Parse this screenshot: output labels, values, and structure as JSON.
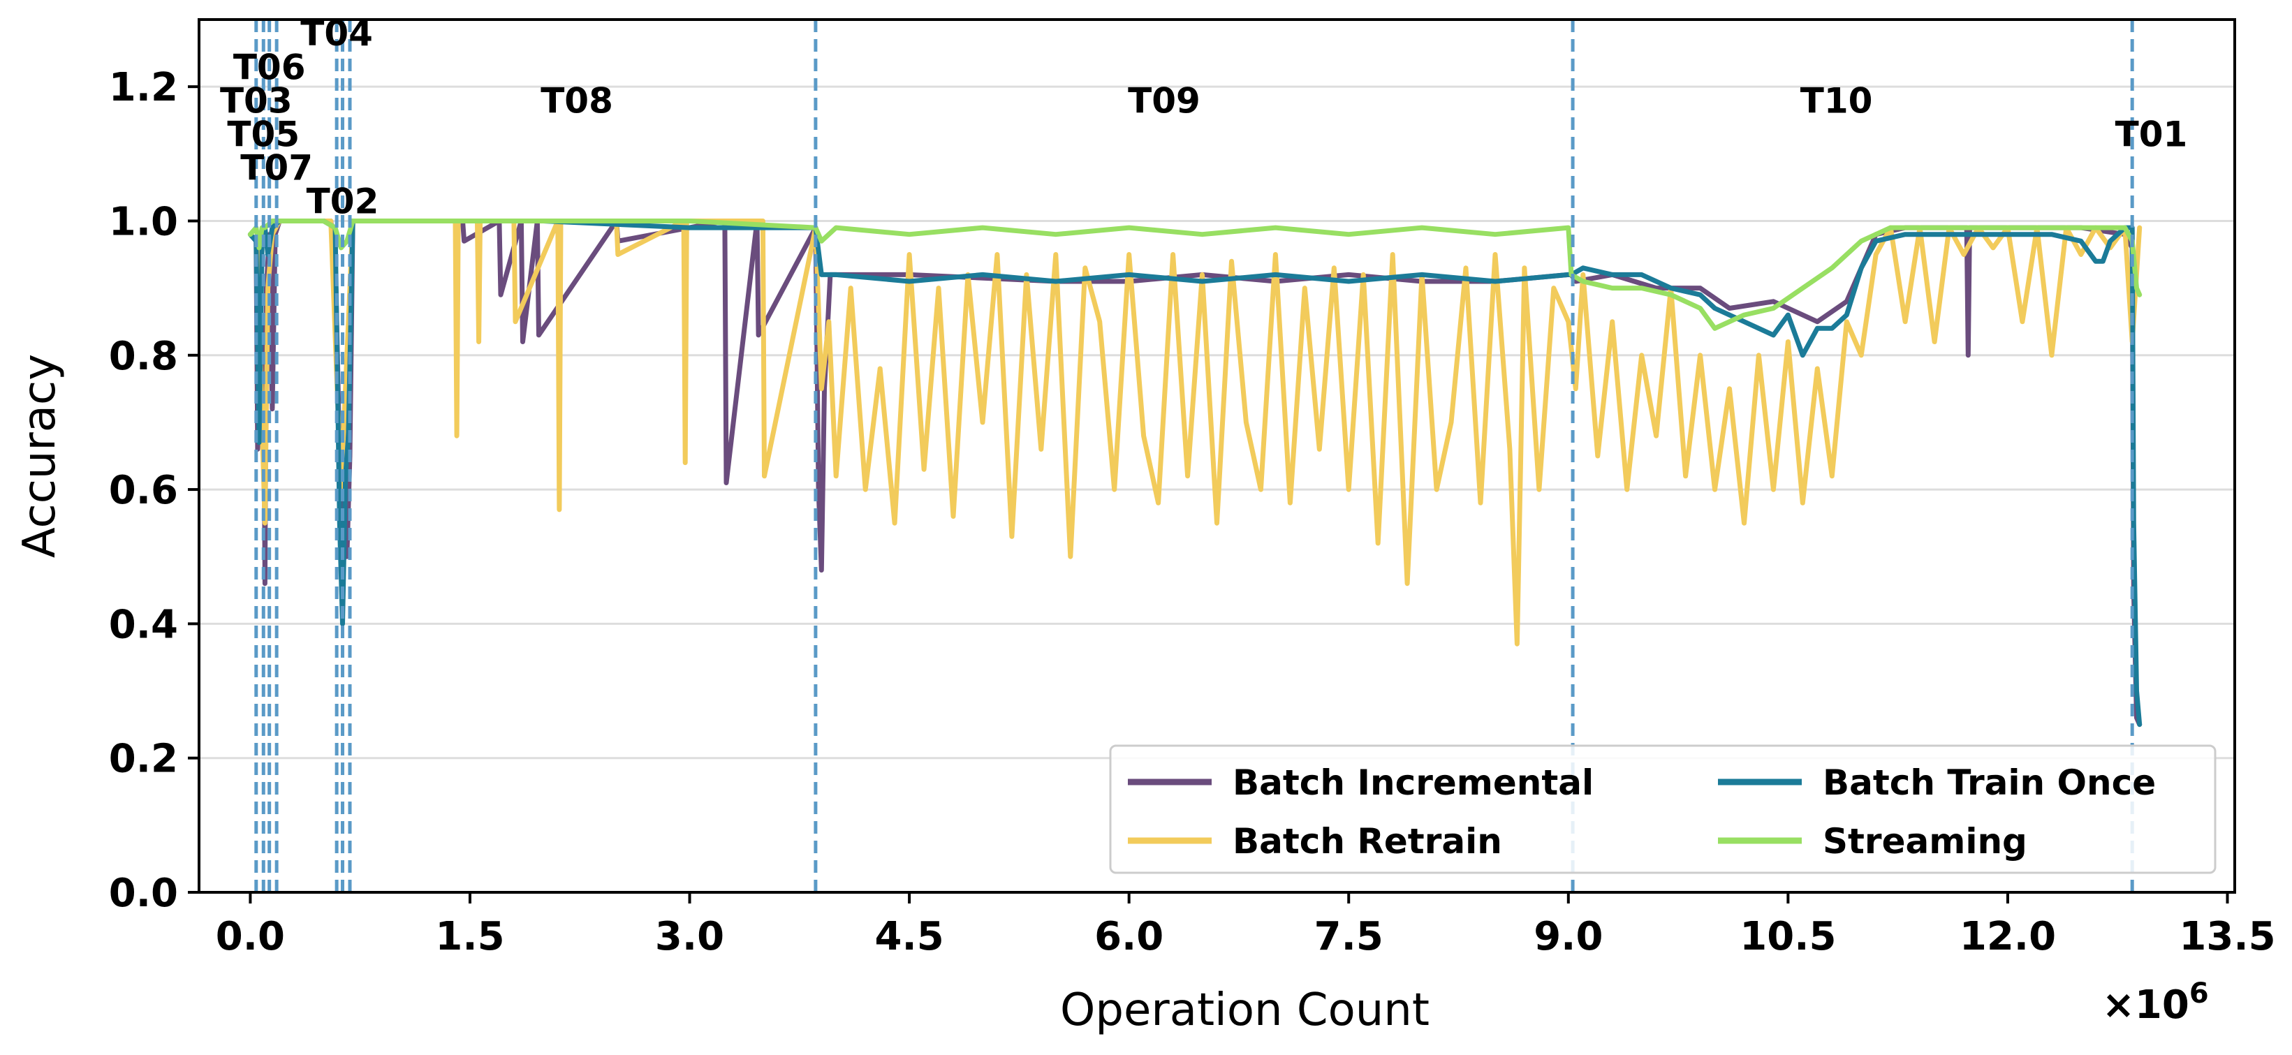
{
  "chart_data": {
    "type": "line",
    "xlabel": "Operation Count",
    "ylabel": "Accuracy",
    "x_multiplier_label": "×10",
    "x_multiplier_exp": "6",
    "xlim": [
      -0.35,
      13.55
    ],
    "ylim": [
      0.0,
      1.3
    ],
    "x_ticks": [
      0.0,
      1.5,
      3.0,
      4.5,
      6.0,
      7.5,
      9.0,
      10.5,
      12.0,
      13.5
    ],
    "x_tick_labels": [
      "0.0",
      "1.5",
      "3.0",
      "4.5",
      "6.0",
      "7.5",
      "9.0",
      "10.5",
      "12.0",
      "13.5"
    ],
    "y_ticks": [
      0.0,
      0.2,
      0.4,
      0.6,
      0.8,
      1.0,
      1.2
    ],
    "y_tick_labels": [
      "0.0",
      "0.2",
      "0.4",
      "0.6",
      "0.8",
      "1.0",
      "1.2"
    ],
    "grid": "horizontal",
    "legend_position": "lower-right",
    "legend_columns": 2,
    "task_boundaries": [
      {
        "label": "T03",
        "x": 0.04,
        "label_y": 1.18
      },
      {
        "label": "T05",
        "x": 0.09,
        "label_y": 1.13
      },
      {
        "label": "T06",
        "x": 0.13,
        "label_y": 1.23
      },
      {
        "label": "T07",
        "x": 0.18,
        "label_y": 1.08
      },
      {
        "label": "T04",
        "x": 0.59,
        "label_y": 1.28
      },
      {
        "label": "T02",
        "x": 0.63,
        "label_y": 1.03
      },
      {
        "label": "",
        "x": 0.68,
        "label_y": null
      },
      {
        "label": "T08",
        "x": 3.86,
        "label_y": 1.18,
        "label_x": 2.23
      },
      {
        "label": "T09",
        "x": 9.03,
        "label_y": 1.18,
        "label_x": 6.24
      },
      {
        "label": "T10",
        "x": 12.85,
        "label_y": 1.18,
        "label_x": 10.83
      },
      {
        "label": "T01",
        "x": null,
        "label_y": 1.13,
        "label_x": 12.98
      }
    ],
    "series": [
      {
        "name": "Batch Incremental",
        "color": "#6a4c7d",
        "x": [
          0.0,
          0.04,
          0.05,
          0.09,
          0.1,
          0.11,
          0.13,
          0.15,
          0.17,
          0.2,
          0.3,
          0.55,
          0.58,
          0.62,
          0.64,
          0.66,
          0.68,
          0.7,
          1.0,
          1.45,
          1.46,
          1.7,
          1.71,
          1.85,
          1.86,
          1.96,
          1.97,
          2.5,
          2.51,
          3.24,
          3.25,
          3.46,
          3.47,
          3.86,
          3.88,
          3.9,
          3.92,
          3.96,
          4.5,
          5.5,
          6.0,
          6.5,
          7.0,
          7.5,
          8.0,
          8.5,
          9.0,
          9.02,
          9.05,
          9.3,
          9.6,
          9.9,
          10.1,
          10.4,
          10.7,
          10.9,
          11.1,
          11.3,
          11.72,
          11.73,
          11.74,
          12.0,
          12.5,
          12.8,
          12.85,
          12.86,
          12.88,
          12.9
        ],
        "y": [
          0.98,
          0.97,
          0.66,
          0.85,
          0.46,
          0.9,
          0.98,
          0.72,
          0.98,
          1.0,
          1.0,
          1.0,
          0.95,
          0.55,
          0.7,
          0.5,
          0.65,
          1.0,
          1.0,
          1.0,
          0.97,
          1.0,
          0.89,
          1.0,
          0.82,
          1.0,
          0.83,
          1.0,
          0.97,
          1.0,
          0.61,
          1.0,
          0.83,
          0.99,
          0.6,
          0.48,
          0.75,
          0.92,
          0.92,
          0.91,
          0.91,
          0.92,
          0.91,
          0.92,
          0.91,
          0.91,
          0.92,
          0.92,
          0.91,
          0.92,
          0.9,
          0.9,
          0.87,
          0.88,
          0.85,
          0.88,
          0.98,
          0.99,
          0.99,
          0.8,
          0.99,
          0.99,
          0.99,
          0.98,
          0.96,
          0.45,
          0.26,
          0.25
        ]
      },
      {
        "name": "Batch Retrain",
        "color": "#f2cb5b",
        "x": [
          0.0,
          0.05,
          0.08,
          0.1,
          0.12,
          0.15,
          0.2,
          0.55,
          0.62,
          0.66,
          0.7,
          1.4,
          1.41,
          1.42,
          1.55,
          1.56,
          1.57,
          1.8,
          1.81,
          2.1,
          2.11,
          2.12,
          2.5,
          2.51,
          2.96,
          2.97,
          2.98,
          3.5,
          3.51,
          3.86,
          3.9,
          3.95,
          4.0,
          4.1,
          4.2,
          4.3,
          4.4,
          4.5,
          4.6,
          4.7,
          4.8,
          4.9,
          5.0,
          5.1,
          5.2,
          5.3,
          5.4,
          5.5,
          5.6,
          5.7,
          5.8,
          5.9,
          6.0,
          6.1,
          6.2,
          6.3,
          6.4,
          6.5,
          6.6,
          6.7,
          6.8,
          6.9,
          7.0,
          7.1,
          7.2,
          7.3,
          7.4,
          7.5,
          7.6,
          7.7,
          7.8,
          7.9,
          8.0,
          8.1,
          8.2,
          8.3,
          8.4,
          8.5,
          8.6,
          8.65,
          8.7,
          8.8,
          8.9,
          9.0,
          9.05,
          9.1,
          9.2,
          9.3,
          9.4,
          9.5,
          9.6,
          9.7,
          9.8,
          9.9,
          10.0,
          10.1,
          10.2,
          10.3,
          10.4,
          10.5,
          10.6,
          10.7,
          10.8,
          10.9,
          11.0,
          11.1,
          11.2,
          11.3,
          11.4,
          11.5,
          11.6,
          11.7,
          11.8,
          11.9,
          12.0,
          12.1,
          12.2,
          12.3,
          12.4,
          12.5,
          12.6,
          12.7,
          12.8,
          12.85,
          12.9
        ],
        "y": [
          0.98,
          0.97,
          0.7,
          0.55,
          0.9,
          0.98,
          1.0,
          1.0,
          0.6,
          0.8,
          1.0,
          1.0,
          0.68,
          1.0,
          1.0,
          0.82,
          1.0,
          1.0,
          0.85,
          1.0,
          0.57,
          1.0,
          1.0,
          0.95,
          1.0,
          0.64,
          1.0,
          1.0,
          0.62,
          0.99,
          0.75,
          0.85,
          0.62,
          0.9,
          0.6,
          0.78,
          0.55,
          0.95,
          0.63,
          0.9,
          0.56,
          0.92,
          0.7,
          0.95,
          0.53,
          0.92,
          0.66,
          0.95,
          0.5,
          0.93,
          0.85,
          0.6,
          0.95,
          0.68,
          0.58,
          0.95,
          0.62,
          0.92,
          0.55,
          0.94,
          0.7,
          0.6,
          0.95,
          0.58,
          0.9,
          0.66,
          0.93,
          0.6,
          0.92,
          0.52,
          0.95,
          0.46,
          0.92,
          0.6,
          0.7,
          0.93,
          0.58,
          0.95,
          0.66,
          0.37,
          0.93,
          0.6,
          0.9,
          0.85,
          0.75,
          0.92,
          0.65,
          0.85,
          0.6,
          0.8,
          0.68,
          0.9,
          0.62,
          0.8,
          0.6,
          0.75,
          0.55,
          0.8,
          0.6,
          0.82,
          0.58,
          0.78,
          0.62,
          0.85,
          0.8,
          0.95,
          0.99,
          0.85,
          0.99,
          0.82,
          0.99,
          0.95,
          0.99,
          0.96,
          0.99,
          0.85,
          0.99,
          0.8,
          0.99,
          0.95,
          0.99,
          0.96,
          0.99,
          0.82,
          0.99
        ]
      },
      {
        "name": "Batch Train Once",
        "color": "#1b7b98",
        "x": [
          0.0,
          0.04,
          0.06,
          0.08,
          0.1,
          0.12,
          0.15,
          0.2,
          0.5,
          0.58,
          0.61,
          0.63,
          0.65,
          0.67,
          0.7,
          1.0,
          2.0,
          3.0,
          3.86,
          3.9,
          4.0,
          4.5,
          5.0,
          5.5,
          6.0,
          6.5,
          7.0,
          7.5,
          8.0,
          8.5,
          9.0,
          9.02,
          9.1,
          9.3,
          9.5,
          9.7,
          9.9,
          10.0,
          10.2,
          10.4,
          10.5,
          10.6,
          10.7,
          10.8,
          10.9,
          11.0,
          11.1,
          11.3,
          11.5,
          11.8,
          12.0,
          12.3,
          12.5,
          12.6,
          12.65,
          12.7,
          12.8,
          12.85,
          12.86,
          12.88,
          12.9
        ],
        "y": [
          0.98,
          0.97,
          0.67,
          0.96,
          0.99,
          0.95,
          0.99,
          1.0,
          1.0,
          0.99,
          0.55,
          0.4,
          0.62,
          0.68,
          1.0,
          1.0,
          1.0,
          0.99,
          0.99,
          0.92,
          0.92,
          0.91,
          0.92,
          0.91,
          0.92,
          0.91,
          0.92,
          0.91,
          0.92,
          0.91,
          0.92,
          0.92,
          0.93,
          0.92,
          0.92,
          0.9,
          0.89,
          0.87,
          0.85,
          0.83,
          0.86,
          0.8,
          0.84,
          0.84,
          0.86,
          0.93,
          0.97,
          0.98,
          0.98,
          0.98,
          0.98,
          0.98,
          0.97,
          0.94,
          0.94,
          0.97,
          0.99,
          0.99,
          0.55,
          0.3,
          0.25
        ]
      },
      {
        "name": "Streaming",
        "color": "#98df62",
        "x": [
          0.0,
          0.04,
          0.06,
          0.08,
          0.1,
          0.15,
          0.2,
          0.5,
          0.58,
          0.62,
          0.66,
          0.7,
          1.0,
          2.0,
          3.0,
          3.86,
          3.9,
          4.0,
          4.5,
          5.0,
          5.5,
          6.0,
          6.5,
          7.0,
          7.5,
          8.0,
          8.5,
          9.0,
          9.02,
          9.1,
          9.3,
          9.5,
          9.7,
          9.9,
          10.0,
          10.2,
          10.4,
          10.6,
          10.8,
          11.0,
          11.2,
          11.5,
          12.0,
          12.5,
          12.8,
          12.85,
          12.88,
          12.9
        ],
        "y": [
          0.98,
          0.99,
          0.96,
          0.99,
          0.99,
          1.0,
          1.0,
          1.0,
          0.99,
          0.96,
          0.97,
          1.0,
          1.0,
          1.0,
          1.0,
          0.99,
          0.97,
          0.99,
          0.98,
          0.99,
          0.98,
          0.99,
          0.98,
          0.99,
          0.98,
          0.99,
          0.98,
          0.99,
          0.92,
          0.91,
          0.9,
          0.9,
          0.89,
          0.87,
          0.84,
          0.86,
          0.87,
          0.9,
          0.93,
          0.97,
          0.99,
          0.99,
          0.99,
          0.99,
          0.99,
          0.97,
          0.9,
          0.89
        ]
      }
    ]
  }
}
